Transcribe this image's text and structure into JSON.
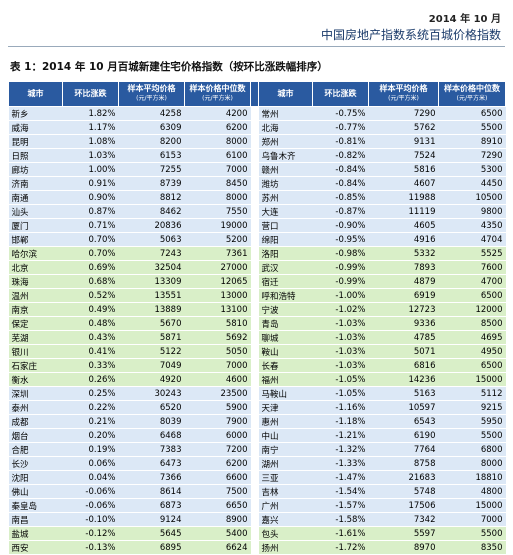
{
  "header": {
    "date": "2014 年 10 月",
    "title": "中国房地产指数系统百城价格指数"
  },
  "table": {
    "caption": "表 1：2014 年 10 月百城新建住宅价格指数（按环比涨跌幅排序）",
    "columns": [
      {
        "label": "城市"
      },
      {
        "label": "环比涨跌"
      },
      {
        "label": "样本平均价格",
        "unit": "(元/平方米)"
      },
      {
        "label": "样本价格中位数",
        "unit": "(元/平方米)"
      },
      {
        "label": "城市"
      },
      {
        "label": "环比涨跌"
      },
      {
        "label": "样本平均价格",
        "unit": "(元/平方米)"
      },
      {
        "label": "样本价格中位数",
        "unit": "(元/平方米)"
      }
    ],
    "rows": [
      [
        "新乡",
        "1.82%",
        "4258",
        "4200",
        "常州",
        "-0.75%",
        "7290",
        "6500"
      ],
      [
        "威海",
        "1.17%",
        "6309",
        "6200",
        "北海",
        "-0.77%",
        "5762",
        "5500"
      ],
      [
        "昆明",
        "1.08%",
        "8200",
        "8000",
        "郑州",
        "-0.81%",
        "9131",
        "8910"
      ],
      [
        "日照",
        "1.03%",
        "6153",
        "6100",
        "乌鲁木齐",
        "-0.82%",
        "7524",
        "7290"
      ],
      [
        "廊坊",
        "1.00%",
        "7255",
        "7000",
        "赣州",
        "-0.84%",
        "5816",
        "5300"
      ],
      [
        "济南",
        "0.91%",
        "8739",
        "8450",
        "潍坊",
        "-0.84%",
        "4607",
        "4450"
      ],
      [
        "南通",
        "0.90%",
        "8812",
        "8000",
        "苏州",
        "-0.85%",
        "11988",
        "10500"
      ],
      [
        "汕头",
        "0.87%",
        "8462",
        "7550",
        "大连",
        "-0.87%",
        "11119",
        "9800"
      ],
      [
        "厦门",
        "0.71%",
        "20836",
        "19000",
        "营口",
        "-0.90%",
        "4605",
        "4350"
      ],
      [
        "邯郸",
        "0.70%",
        "5063",
        "5200",
        "绵阳",
        "-0.95%",
        "4916",
        "4704"
      ],
      [
        "哈尔滨",
        "0.70%",
        "7243",
        "7361",
        "洛阳",
        "-0.98%",
        "5332",
        "5525"
      ],
      [
        "北京",
        "0.69%",
        "32504",
        "27000",
        "武汉",
        "-0.99%",
        "7893",
        "7600"
      ],
      [
        "珠海",
        "0.68%",
        "13309",
        "12065",
        "宿迁",
        "-0.99%",
        "4879",
        "4700"
      ],
      [
        "温州",
        "0.52%",
        "13551",
        "13000",
        "呼和浩特",
        "-1.00%",
        "6919",
        "6500"
      ],
      [
        "南京",
        "0.49%",
        "13889",
        "13100",
        "宁波",
        "-1.02%",
        "12723",
        "12000"
      ],
      [
        "保定",
        "0.48%",
        "5670",
        "5810",
        "青岛",
        "-1.03%",
        "9336",
        "8500"
      ],
      [
        "芜湖",
        "0.43%",
        "5871",
        "5692",
        "聊城",
        "-1.03%",
        "4785",
        "4695"
      ],
      [
        "银川",
        "0.41%",
        "5122",
        "5050",
        "鞍山",
        "-1.03%",
        "5071",
        "4950"
      ],
      [
        "石家庄",
        "0.33%",
        "7049",
        "7000",
        "长春",
        "-1.03%",
        "6816",
        "6500"
      ],
      [
        "衡水",
        "0.26%",
        "4920",
        "4600",
        "福州",
        "-1.05%",
        "14236",
        "15000"
      ],
      [
        "深圳",
        "0.25%",
        "30243",
        "23500",
        "马鞍山",
        "-1.05%",
        "5163",
        "5112"
      ],
      [
        "泰州",
        "0.22%",
        "6520",
        "5900",
        "天津",
        "-1.16%",
        "10597",
        "9215"
      ],
      [
        "成都",
        "0.21%",
        "8039",
        "7900",
        "惠州",
        "-1.18%",
        "6543",
        "5950"
      ],
      [
        "烟台",
        "0.20%",
        "6468",
        "6000",
        "中山",
        "-1.21%",
        "6190",
        "5500"
      ],
      [
        "合肥",
        "0.19%",
        "7383",
        "7200",
        "南宁",
        "-1.32%",
        "7764",
        "6800"
      ],
      [
        "长沙",
        "0.06%",
        "6473",
        "6200",
        "湖州",
        "-1.33%",
        "8758",
        "8000"
      ],
      [
        "沈阳",
        "0.04%",
        "7366",
        "6600",
        "三亚",
        "-1.47%",
        "21683",
        "18810"
      ],
      [
        "佛山",
        "-0.06%",
        "8614",
        "7500",
        "吉林",
        "-1.54%",
        "5748",
        "4800"
      ],
      [
        "秦皇岛",
        "-0.06%",
        "6873",
        "6650",
        "广州",
        "-1.57%",
        "17506",
        "15000"
      ],
      [
        "南昌",
        "-0.10%",
        "9124",
        "8900",
        "嘉兴",
        "-1.58%",
        "7342",
        "7000"
      ],
      [
        "盐城",
        "-0.12%",
        "5645",
        "5400",
        "包头",
        "-1.61%",
        "5597",
        "5500"
      ],
      [
        "西安",
        "-0.13%",
        "6895",
        "6624",
        "扬州",
        "-1.72%",
        "8970",
        "8350"
      ]
    ]
  }
}
